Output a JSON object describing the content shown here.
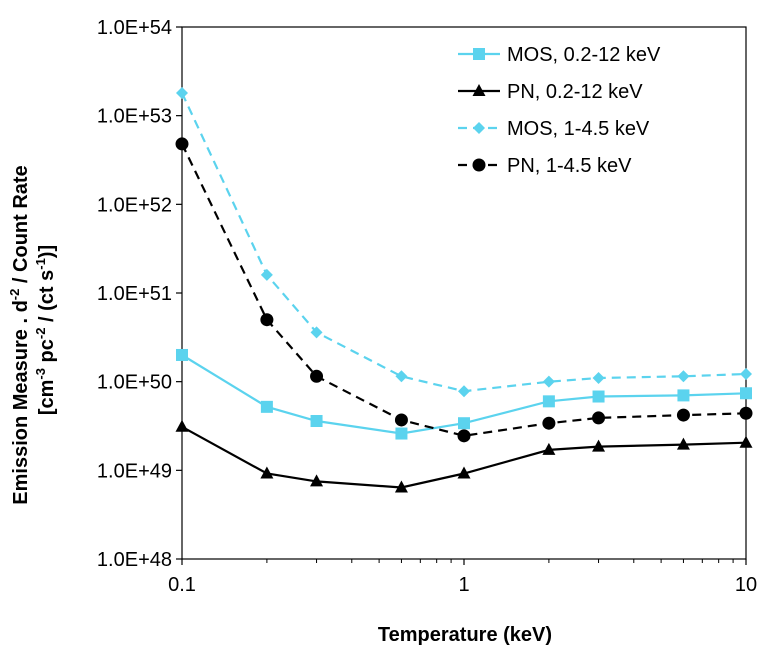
{
  "chart_data": {
    "type": "line",
    "title": "",
    "xlabel": "Temperature (keV)",
    "ylabel_line1": "Emission Measure . d",
    "ylabel_line1_sup": "-2",
    "ylabel_line1_tail": " / Count Rate",
    "ylabel_line2_a": "[cm",
    "ylabel_line2_sup1": "-3",
    "ylabel_line2_b": " pc",
    "ylabel_line2_sup2": "-2",
    "ylabel_line2_c": " / (ct s",
    "ylabel_line2_sup3": "-1",
    "ylabel_line2_d": ")]",
    "xscale": "log",
    "yscale": "log",
    "xlim": [
      0.1,
      10
    ],
    "ylim": [
      1e+48,
      1e+54
    ],
    "x_ticks": [
      {
        "value": 0.1,
        "label": "0.1"
      },
      {
        "value": 1,
        "label": "1"
      },
      {
        "value": 10,
        "label": "10"
      }
    ],
    "y_ticks": [
      {
        "value": 1e+48,
        "label": "1.0E+48"
      },
      {
        "value": 1e+49,
        "label": "1.0E+49"
      },
      {
        "value": 1e+50,
        "label": "1.0E+50"
      },
      {
        "value": 1e+51,
        "label": "1.0E+51"
      },
      {
        "value": 1e+52,
        "label": "1.0E+52"
      },
      {
        "value": 1e+53,
        "label": "1.0E+53"
      },
      {
        "value": 1e+54,
        "label": "1.0E+54"
      }
    ],
    "grid": false,
    "legend_position": "top-right",
    "x": [
      0.1,
      0.2,
      0.3,
      0.6,
      1,
      2,
      3,
      6,
      10
    ],
    "series": [
      {
        "name": "MOS, 0.2-12 keV",
        "color": "#5BD3EE",
        "dash": "solid",
        "marker": "square",
        "values": [
          2e+50,
          5.2e+49,
          3.6e+49,
          2.6e+49,
          3.4e+49,
          6e+49,
          6.8e+49,
          7e+49,
          7.4e+49
        ]
      },
      {
        "name": "PN, 0.2-12 keV",
        "color": "#000000",
        "dash": "solid",
        "marker": "triangle",
        "values": [
          3.1e+49,
          9.2e+48,
          7.5e+48,
          6.4e+48,
          9.2e+48,
          1.7e+49,
          1.85e+49,
          1.95e+49,
          2.05e+49
        ]
      },
      {
        "name": "MOS, 1-4.5 keV",
        "color": "#5BD3EE",
        "dash": "dashed",
        "marker": "diamond",
        "values": [
          1.8e+53,
          1.6e+51,
          3.6e+50,
          1.15e+50,
          7.8e+49,
          1e+50,
          1.1e+50,
          1.15e+50,
          1.22e+50
        ]
      },
      {
        "name": "PN, 1-4.5 keV",
        "color": "#000000",
        "dash": "dashed",
        "marker": "circle",
        "values": [
          4.8e+52,
          5e+50,
          1.15e+50,
          3.7e+49,
          2.45e+49,
          3.4e+49,
          3.9e+49,
          4.2e+49,
          4.4e+49
        ]
      }
    ]
  }
}
